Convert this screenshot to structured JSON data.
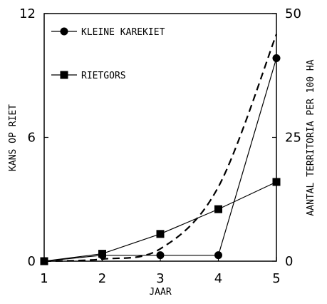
{
  "chart_data": {
    "type": "line",
    "xlabel": "JAAR",
    "ylabel_left": "KANS OP RIET",
    "ylabel_right": "AANTAL TERRITORIA PER 100 HA",
    "x": [
      1,
      2,
      3,
      4,
      5
    ],
    "x_ticks": [
      "1",
      "2",
      "3",
      "4",
      "5"
    ],
    "ylim_left": [
      0,
      12
    ],
    "y_ticks_left": [
      "0",
      "6",
      "12"
    ],
    "ylim_right": [
      0,
      50
    ],
    "y_ticks_right": [
      "0",
      "25",
      "50"
    ],
    "grid": false,
    "legend_position": "top-left",
    "series": [
      {
        "name": "KLEINE KAREKIET",
        "axis": "right",
        "marker": "circle",
        "line": "solid",
        "values": [
          0,
          1.2,
          1.2,
          1.2,
          41
        ]
      },
      {
        "name": "RIETGORS",
        "axis": "right",
        "marker": "square",
        "line": "solid",
        "values": [
          0,
          1.5,
          5.5,
          10.5,
          16
        ]
      },
      {
        "name": "",
        "axis": "left",
        "marker": "none",
        "line": "dashed",
        "values": [
          0,
          0.1,
          0.6,
          3.6,
          11
        ]
      }
    ]
  }
}
